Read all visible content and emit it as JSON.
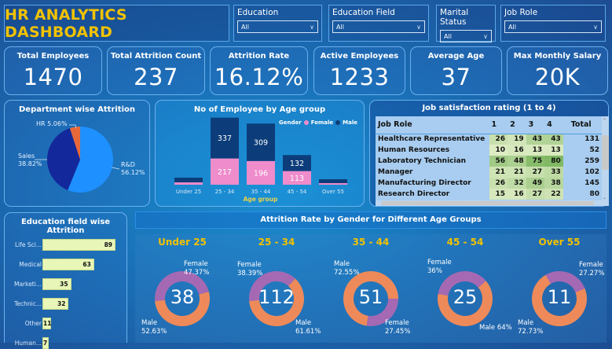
{
  "header": {
    "title": "HR ANALYTICS DASHBOARD"
  },
  "filters": [
    {
      "label": "Education",
      "value": "All"
    },
    {
      "label": "Education Field",
      "value": "All"
    },
    {
      "label": "Marital Status",
      "value": "All"
    },
    {
      "label": "Job Role",
      "value": "All"
    }
  ],
  "kpis": [
    {
      "label": "Total Employees",
      "value": "1470"
    },
    {
      "label": "Total Attrition Count",
      "value": "237"
    },
    {
      "label": "Attrition Rate",
      "value": "16.12%"
    },
    {
      "label": "Active Employees",
      "value": "1233"
    },
    {
      "label": "Average Age",
      "value": "37"
    },
    {
      "label": "Max Monthly Salary",
      "value": "20K"
    }
  ],
  "colors": {
    "accent_title": "#f2c200",
    "rnd": "#1e90ff",
    "sales": "#13289a",
    "hr": "#e8683a",
    "female": "#ef8ccb",
    "male": "#0c3d7a",
    "donut_female": "#a569b3",
    "donut_male": "#ee8a5a",
    "edu_bar": "#e8f6b8"
  },
  "chart_data": [
    {
      "type": "pie",
      "title": "Department wise Attrition",
      "categories": [
        "R&D",
        "Sales",
        "HR"
      ],
      "values": [
        56.12,
        38.82,
        5.06
      ],
      "labels": [
        "R&D 56.12%",
        "Sales 38.82%",
        "HR 5.06%"
      ]
    },
    {
      "type": "bar",
      "stacked": true,
      "title": "No of Employee by Age group",
      "xlabel": "Age group",
      "legend_title": "Gender",
      "legend": [
        "Female",
        "Male"
      ],
      "legend_position": "top-right",
      "categories": [
        "Under 25",
        "25 - 34",
        "35 - 44",
        "45 - 54",
        "Over 55"
      ],
      "series": [
        {
          "name": "Female",
          "values": [
            38,
            217,
            196,
            113,
            25
          ]
        },
        {
          "name": "Male",
          "values": [
            59,
            337,
            309,
            132,
            44
          ]
        }
      ],
      "data_labels": {
        "Female": [
          "",
          "217",
          "196",
          "113",
          ""
        ],
        "Male": [
          "",
          "337",
          "309",
          "132",
          ""
        ]
      }
    },
    {
      "type": "table",
      "title": "Job satisfaction rating (1 to 4)",
      "columns": [
        "Job Role",
        "1",
        "2",
        "3",
        "4",
        "Total"
      ],
      "rows": [
        [
          "Healthcare Representative",
          26,
          19,
          43,
          43,
          131
        ],
        [
          "Human Resources",
          10,
          16,
          13,
          13,
          52
        ],
        [
          "Laboratory Technician",
          56,
          48,
          75,
          80,
          259
        ],
        [
          "Manager",
          21,
          21,
          27,
          33,
          102
        ],
        [
          "Manufacturing Director",
          26,
          32,
          49,
          38,
          145
        ],
        [
          "Research Director",
          15,
          16,
          27,
          22,
          80
        ]
      ]
    },
    {
      "type": "bar",
      "orientation": "horizontal",
      "title": "Education field wise Attrition",
      "categories": [
        "Life Sci...",
        "Medical",
        "Marketi...",
        "Technic...",
        "Other",
        "Human..."
      ],
      "values": [
        89,
        63,
        35,
        32,
        11,
        7
      ]
    },
    {
      "type": "pie",
      "variant": "donut",
      "title": "Attrition Rate by Gender for Different Age Groups",
      "groups": [
        {
          "name": "Under 25",
          "total": "38",
          "female": 47.37,
          "male": 52.63,
          "female_label": "47.37%",
          "male_label": "52.63%"
        },
        {
          "name": "25 - 34",
          "total": "112",
          "female": 38.39,
          "male": 61.61,
          "female_label": "38.39%",
          "male_label": "61.61%"
        },
        {
          "name": "35 - 44",
          "total": "51",
          "female": 27.45,
          "male": 72.55,
          "female_label": "27.45%",
          "male_label": "72.55%"
        },
        {
          "name": "45 - 54",
          "total": "25",
          "female": 36,
          "male": 64,
          "female_label": "36%",
          "male_label": "Male 64%"
        },
        {
          "name": "Over 55",
          "total": "11",
          "female": 27.27,
          "male": 72.73,
          "female_label": "27.27%",
          "male_label": "72.73%"
        }
      ],
      "legend": [
        "Female",
        "Male"
      ]
    }
  ],
  "text": {
    "female": "Female",
    "male": "Male",
    "gender": "Gender"
  }
}
